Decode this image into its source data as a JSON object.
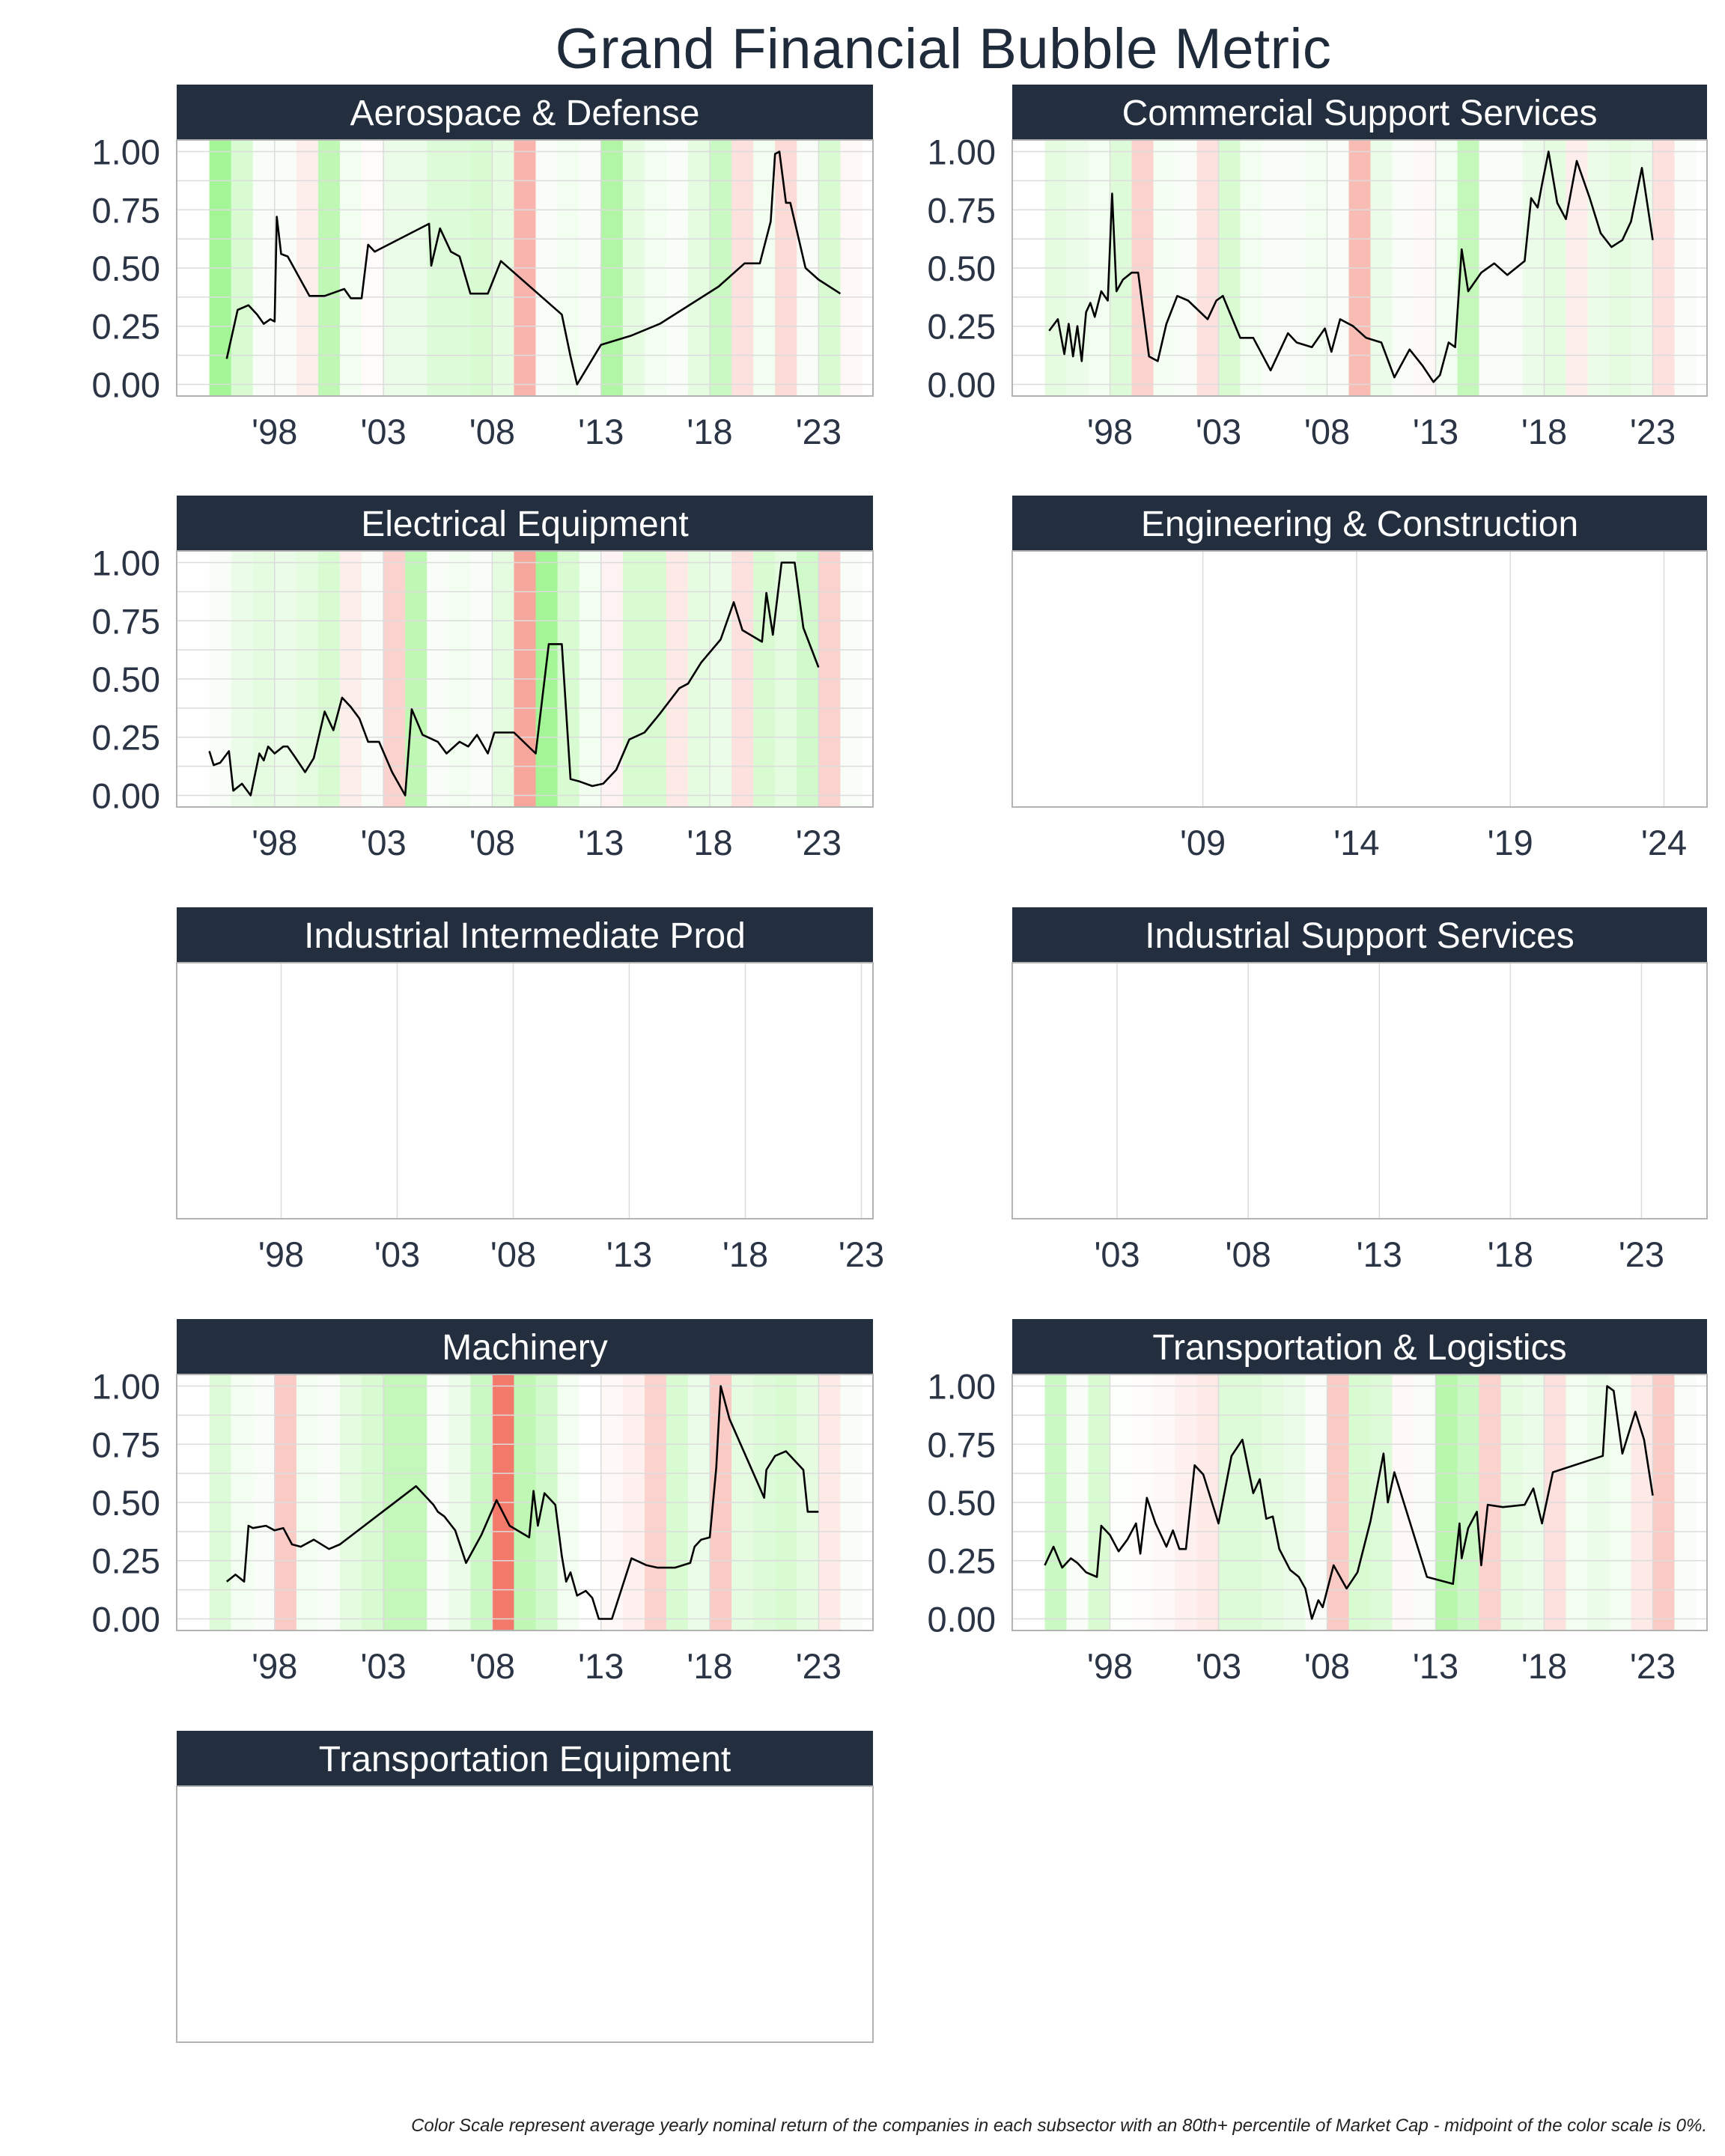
{
  "title": "Grand Financial Bubble Metric",
  "caption": "Color Scale represent average yearly nominal return of the companies in each subsector with an 80th+ percentile of Market Cap - midpoint of the color scale is 0%.",
  "colors": {
    "strip": "#232f3e",
    "strip_text": "#ffffff",
    "line": "#000000",
    "grid": "#dcdcdc",
    "positive": "#7cf068",
    "negative": "#f26a5a",
    "title": "#1f2b3a"
  },
  "chart_data": [
    {
      "type": "line",
      "title": "Aerospace & Defense",
      "xlim": [
        1993.5,
        2025.5
      ],
      "ylim": [
        -0.05,
        1.05
      ],
      "yticks": [
        0,
        0.25,
        0.5,
        0.75,
        1
      ],
      "ytick_labels": [
        "0.00",
        "0.25",
        "0.50",
        "0.75",
        "1.00"
      ],
      "xticks": [
        1998,
        2003,
        2008,
        2013,
        2018,
        2023
      ],
      "xtick_labels": [
        "'98",
        "'03",
        "'08",
        "'13",
        "'18",
        "'23"
      ],
      "bands_start": 1995,
      "bands": [
        0.7,
        0.3,
        0.05,
        0.05,
        -0.12,
        0.5,
        0.1,
        -0.03,
        0.15,
        0.15,
        0.25,
        0.25,
        0.3,
        0.2,
        -0.5,
        0.05,
        0.1,
        0.05,
        0.6,
        0.2,
        0.1,
        0.05,
        0.2,
        0.4,
        -0.2,
        0.1,
        -0.25,
        0.05,
        0.3,
        -0.05
      ],
      "x": [
        1995.8,
        1996.3,
        1996.8,
        1997.2,
        1997.5,
        1997.8,
        1998.0,
        1998.1,
        1998.3,
        1998.6,
        1999.6,
        2000.3,
        2001.2,
        2001.5,
        2002.0,
        2002.3,
        2002.6,
        2005.1,
        2005.2,
        2005.6,
        2006.1,
        2006.5,
        2007.0,
        2007.8,
        2008.4,
        2011.2,
        2011.6,
        2011.9,
        2013.0,
        2014.4,
        2015.7,
        2018.4,
        2019.6,
        2020.3,
        2020.8,
        2021.0,
        2021.2,
        2021.5,
        2021.7,
        2022.4,
        2023.0,
        2024.0
      ],
      "y": [
        0.11,
        0.32,
        0.34,
        0.3,
        0.26,
        0.28,
        0.27,
        0.72,
        0.56,
        0.55,
        0.38,
        0.38,
        0.41,
        0.37,
        0.37,
        0.6,
        0.57,
        0.69,
        0.51,
        0.67,
        0.57,
        0.55,
        0.39,
        0.39,
        0.53,
        0.3,
        0.12,
        0.0,
        0.17,
        0.21,
        0.26,
        0.42,
        0.52,
        0.52,
        0.7,
        0.99,
        1.0,
        0.78,
        0.78,
        0.5,
        0.45,
        0.39
      ]
    },
    {
      "type": "line",
      "title": "Commercial Support Services",
      "xlim": [
        1993.5,
        2025.5
      ],
      "ylim": [
        -0.05,
        1.05
      ],
      "yticks": [
        0,
        0.25,
        0.5,
        0.75,
        1
      ],
      "ytick_labels": [
        "0.00",
        "0.25",
        "0.50",
        "0.75",
        "1.00"
      ],
      "xticks": [
        1998,
        2003,
        2008,
        2013,
        2018,
        2023
      ],
      "xtick_labels": [
        "'98",
        "'03",
        "'08",
        "'13",
        "'18",
        "'23"
      ],
      "bands_start": 1995,
      "bands": [
        0.2,
        0.15,
        0.1,
        0.25,
        -0.3,
        0.08,
        0.05,
        -0.2,
        0.3,
        0.1,
        0.05,
        0.05,
        0.1,
        0.05,
        -0.45,
        0.15,
        0.05,
        -0.05,
        0.1,
        0.45,
        0.05,
        0.05,
        0.15,
        0.2,
        -0.12,
        0.15,
        0.2,
        0.15,
        -0.2,
        0.05
      ],
      "x": [
        1995.2,
        1995.6,
        1995.9,
        1996.1,
        1996.3,
        1996.5,
        1996.7,
        1996.9,
        1997.1,
        1997.3,
        1997.6,
        1997.9,
        1998.1,
        1998.3,
        1998.6,
        1999.0,
        1999.3,
        1999.8,
        2000.2,
        2000.6,
        2001.1,
        2001.6,
        2002.5,
        2002.9,
        2003.2,
        2004.0,
        2004.6,
        2005.4,
        2006.2,
        2006.6,
        2007.3,
        2007.9,
        2008.2,
        2008.6,
        2009.2,
        2009.8,
        2010.5,
        2011.1,
        2011.8,
        2012.4,
        2012.9,
        2013.2,
        2013.6,
        2013.9,
        2014.2,
        2014.5,
        2015.1,
        2015.7,
        2016.3,
        2017.1,
        2017.4,
        2017.7,
        2017.9,
        2018.2,
        2018.6,
        2019.0,
        2019.5,
        2020.1,
        2020.6,
        2021.1,
        2021.6,
        2022.0,
        2022.5,
        2023.0
      ],
      "y": [
        0.23,
        0.28,
        0.13,
        0.26,
        0.12,
        0.25,
        0.1,
        0.31,
        0.35,
        0.29,
        0.4,
        0.36,
        0.82,
        0.4,
        0.45,
        0.48,
        0.48,
        0.12,
        0.1,
        0.26,
        0.38,
        0.36,
        0.28,
        0.36,
        0.38,
        0.2,
        0.2,
        0.06,
        0.22,
        0.18,
        0.16,
        0.24,
        0.14,
        0.28,
        0.25,
        0.2,
        0.18,
        0.03,
        0.15,
        0.08,
        0.01,
        0.04,
        0.18,
        0.16,
        0.58,
        0.4,
        0.48,
        0.52,
        0.47,
        0.53,
        0.8,
        0.76,
        0.86,
        1.0,
        0.78,
        0.71,
        0.96,
        0.8,
        0.65,
        0.59,
        0.62,
        0.7,
        0.93,
        0.62
      ]
    },
    {
      "type": "line",
      "title": "Electrical Equipment",
      "xlim": [
        1993.5,
        2025.5
      ],
      "ylim": [
        -0.05,
        1.05
      ],
      "yticks": [
        0,
        0.25,
        0.5,
        0.75,
        1
      ],
      "ytick_labels": [
        "0.00",
        "0.25",
        "0.50",
        "0.75",
        "1.00"
      ],
      "xticks": [
        1998,
        2003,
        2008,
        2013,
        2018,
        2023
      ],
      "xtick_labels": [
        "'98",
        "'03",
        "'08",
        "'13",
        "'18",
        "'23"
      ],
      "bands_start": 1995,
      "bands": [
        0.05,
        0.15,
        0.2,
        0.15,
        0.2,
        0.3,
        -0.12,
        0.05,
        -0.3,
        0.5,
        0.05,
        0.1,
        0.05,
        0.2,
        -0.6,
        0.7,
        0.3,
        0.1,
        -0.08,
        0.3,
        0.3,
        -0.15,
        0.2,
        0.15,
        -0.2,
        0.3,
        0.2,
        0.35,
        -0.3,
        0.05
      ],
      "x": [
        1995.0,
        1995.2,
        1995.5,
        1995.9,
        1996.1,
        1996.5,
        1996.9,
        1997.3,
        1997.5,
        1997.7,
        1998.0,
        1998.4,
        1998.6,
        1998.9,
        1999.4,
        1999.8,
        2000.3,
        2000.7,
        2001.1,
        2001.5,
        2001.9,
        2002.3,
        2002.8,
        2003.4,
        2004.0,
        2004.3,
        2004.8,
        2005.5,
        2005.9,
        2006.5,
        2006.9,
        2007.3,
        2007.8,
        2008.1,
        2009.0,
        2010.0,
        2010.6,
        2011.2,
        2011.6,
        2012.0,
        2012.6,
        2013.1,
        2013.7,
        2014.3,
        2015.0,
        2015.7,
        2016.6,
        2017.0,
        2017.6,
        2018.5,
        2019.1,
        2019.5,
        2020.4,
        2020.6,
        2020.9,
        2021.3,
        2021.9,
        2022.3,
        2023.0
      ],
      "y": [
        0.19,
        0.13,
        0.14,
        0.19,
        0.02,
        0.05,
        0.0,
        0.18,
        0.15,
        0.21,
        0.18,
        0.21,
        0.21,
        0.17,
        0.1,
        0.16,
        0.36,
        0.28,
        0.42,
        0.38,
        0.33,
        0.23,
        0.23,
        0.1,
        0.0,
        0.37,
        0.26,
        0.23,
        0.18,
        0.23,
        0.21,
        0.26,
        0.18,
        0.27,
        0.27,
        0.18,
        0.65,
        0.65,
        0.07,
        0.06,
        0.04,
        0.05,
        0.11,
        0.24,
        0.27,
        0.35,
        0.46,
        0.48,
        0.57,
        0.67,
        0.83,
        0.71,
        0.66,
        0.87,
        0.69,
        1.0,
        1.0,
        0.72,
        0.55
      ]
    },
    {
      "type": "line",
      "title": "Engineering & Construction",
      "xlim": [
        2002.8,
        2025.4
      ],
      "ylim": [
        -0.05,
        1.05
      ],
      "yticks": [],
      "ytick_labels": [],
      "xticks": [
        2009,
        2014,
        2019,
        2024
      ],
      "xtick_labels": [
        "'09",
        "'14",
        "'19",
        "'24"
      ],
      "bands_start": 2003,
      "bands": [],
      "x": [],
      "y": []
    },
    {
      "type": "line",
      "title": "Industrial Intermediate Prod",
      "xlim": [
        1993.5,
        2023.5
      ],
      "ylim": [
        -0.05,
        1.05
      ],
      "yticks": [],
      "ytick_labels": [],
      "xticks": [
        1998,
        2003,
        2008,
        2013,
        2018,
        2023
      ],
      "xtick_labels": [
        "'98",
        "'03",
        "'08",
        "'13",
        "'18",
        "'23"
      ],
      "bands_start": 1995,
      "bands": [],
      "x": [],
      "y": []
    },
    {
      "type": "line",
      "title": "Industrial Support Services",
      "xlim": [
        1999.0,
        2025.5
      ],
      "ylim": [
        -0.05,
        1.05
      ],
      "yticks": [],
      "ytick_labels": [],
      "xticks": [
        2003,
        2008,
        2013,
        2018,
        2023
      ],
      "xtick_labels": [
        "'03",
        "'08",
        "'13",
        "'18",
        "'23"
      ],
      "bands_start": 2000,
      "bands": [],
      "x": [],
      "y": []
    },
    {
      "type": "line",
      "title": "Machinery",
      "xlim": [
        1993.5,
        2025.5
      ],
      "ylim": [
        -0.05,
        1.05
      ],
      "yticks": [
        0,
        0.25,
        0.5,
        0.75,
        1
      ],
      "ytick_labels": [
        "0.00",
        "0.25",
        "0.50",
        "0.75",
        "1.00"
      ],
      "xticks": [
        1998,
        2003,
        2008,
        2013,
        2018,
        2023
      ],
      "xtick_labels": [
        "'98",
        "'03",
        "'08",
        "'13",
        "'18",
        "'23"
      ],
      "bands_start": 1995,
      "bands": [
        0.25,
        0.1,
        0.05,
        -0.35,
        0.1,
        0.05,
        0.2,
        0.3,
        0.45,
        0.45,
        0.05,
        0.15,
        0.4,
        -0.9,
        0.5,
        0.35,
        0.1,
        0.0,
        -0.05,
        -0.1,
        -0.3,
        0.3,
        0.15,
        -0.35,
        0.2,
        0.25,
        0.3,
        0.2,
        -0.15,
        0.05
      ],
      "x": [
        1995.8,
        1996.2,
        1996.6,
        1996.8,
        1997.0,
        1997.6,
        1998.0,
        1998.4,
        1998.8,
        1999.2,
        1999.8,
        2000.5,
        2001.0,
        2004.5,
        2005.3,
        2005.5,
        2005.8,
        2006.3,
        2006.8,
        2007.5,
        2008.2,
        2008.8,
        2009.7,
        2009.9,
        2010.1,
        2010.4,
        2010.9,
        2011.2,
        2011.4,
        2011.6,
        2011.9,
        2012.3,
        2012.6,
        2012.9,
        2013.5,
        2014.4,
        2015.1,
        2015.6,
        2016.4,
        2017.1,
        2017.3,
        2017.6,
        2018.0,
        2018.3,
        2018.5,
        2018.9,
        2020.5,
        2020.6,
        2021.0,
        2021.5,
        2022.3,
        2022.5,
        2023.0
      ],
      "y": [
        0.16,
        0.19,
        0.16,
        0.4,
        0.39,
        0.4,
        0.38,
        0.39,
        0.32,
        0.31,
        0.34,
        0.3,
        0.32,
        0.57,
        0.49,
        0.46,
        0.44,
        0.38,
        0.24,
        0.36,
        0.51,
        0.4,
        0.35,
        0.55,
        0.4,
        0.54,
        0.49,
        0.27,
        0.16,
        0.2,
        0.1,
        0.12,
        0.09,
        0.0,
        0.0,
        0.26,
        0.23,
        0.22,
        0.22,
        0.24,
        0.31,
        0.34,
        0.35,
        0.65,
        1.0,
        0.86,
        0.52,
        0.64,
        0.7,
        0.72,
        0.64,
        0.46,
        0.46
      ]
    },
    {
      "type": "line",
      "title": "Transportation & Logistics",
      "xlim": [
        1993.5,
        2025.5
      ],
      "ylim": [
        -0.05,
        1.05
      ],
      "yticks": [
        0,
        0.25,
        0.5,
        0.75,
        1
      ],
      "ytick_labels": [
        "0.00",
        "0.25",
        "0.50",
        "0.75",
        "1.00"
      ],
      "xticks": [
        1998,
        2003,
        2008,
        2013,
        2018,
        2023
      ],
      "xtick_labels": [
        "'98",
        "'03",
        "'08",
        "'13",
        "'18",
        "'23"
      ],
      "bands_start": 1995,
      "bands": [
        0.4,
        0.05,
        0.3,
        0.02,
        -0.02,
        -0.05,
        -0.1,
        -0.15,
        0.25,
        0.25,
        0.2,
        0.15,
        0.05,
        -0.35,
        0.3,
        0.25,
        -0.05,
        0.05,
        0.55,
        0.4,
        -0.3,
        0.2,
        0.15,
        -0.2,
        0.1,
        0.15,
        0.1,
        -0.15,
        -0.35,
        0.05
      ],
      "x": [
        1995.0,
        1995.4,
        1995.8,
        1996.2,
        1996.5,
        1996.9,
        1997.4,
        1997.6,
        1998.0,
        1998.4,
        1998.8,
        1999.2,
        1999.4,
        1999.7,
        2000.1,
        2000.6,
        2000.9,
        2001.2,
        2001.5,
        2001.9,
        2002.3,
        2003.0,
        2003.6,
        2004.1,
        2004.6,
        2004.9,
        2005.2,
        2005.5,
        2005.8,
        2006.3,
        2006.7,
        2007.0,
        2007.3,
        2007.6,
        2007.8,
        2008.3,
        2008.9,
        2009.4,
        2010.0,
        2010.6,
        2010.8,
        2011.1,
        2012.6,
        2013.8,
        2014.1,
        2014.2,
        2014.5,
        2014.9,
        2015.1,
        2015.4,
        2016.1,
        2017.1,
        2017.5,
        2017.9,
        2018.4,
        2020.7,
        2020.9,
        2021.2,
        2021.6,
        2022.2,
        2022.6,
        2023.0
      ],
      "y": [
        0.23,
        0.31,
        0.22,
        0.26,
        0.24,
        0.2,
        0.18,
        0.4,
        0.36,
        0.29,
        0.34,
        0.41,
        0.28,
        0.52,
        0.41,
        0.31,
        0.38,
        0.3,
        0.3,
        0.66,
        0.62,
        0.41,
        0.7,
        0.77,
        0.54,
        0.6,
        0.43,
        0.44,
        0.3,
        0.21,
        0.18,
        0.13,
        0.0,
        0.08,
        0.05,
        0.23,
        0.13,
        0.2,
        0.42,
        0.71,
        0.5,
        0.63,
        0.18,
        0.15,
        0.41,
        0.26,
        0.39,
        0.46,
        0.23,
        0.49,
        0.48,
        0.49,
        0.56,
        0.41,
        0.63,
        0.7,
        1.0,
        0.98,
        0.71,
        0.89,
        0.77,
        0.53
      ]
    },
    {
      "type": "line",
      "title": "Transportation Equipment",
      "xlim": [
        1993.5,
        2025.5
      ],
      "ylim": [
        -0.05,
        1.05
      ],
      "yticks": [],
      "ytick_labels": [],
      "xticks": [],
      "xtick_labels": [],
      "bands_start": 1995,
      "bands": [],
      "x": [],
      "y": []
    }
  ]
}
